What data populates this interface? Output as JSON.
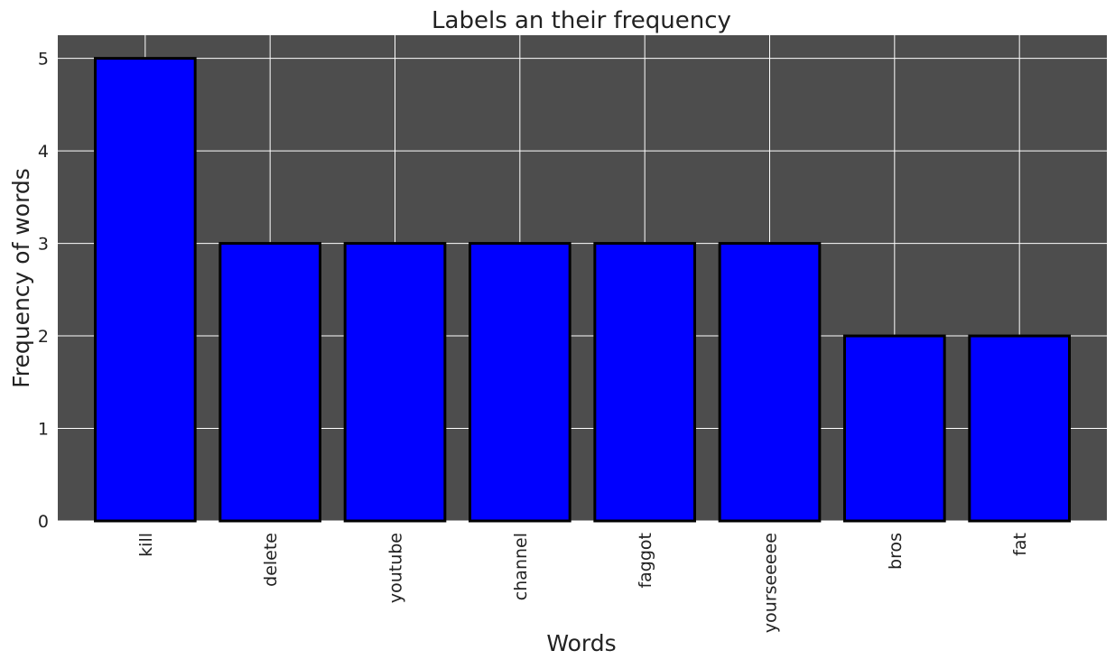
{
  "chart_data": {
    "type": "bar",
    "title": "Labels an their frequency",
    "xlabel": "Words",
    "ylabel": "Frequency of words",
    "categories": [
      "kill",
      "delete",
      "youtube",
      "channel",
      "faggot",
      "yourseeeee",
      "bros",
      "fat"
    ],
    "values": [
      5,
      3,
      3,
      3,
      3,
      3,
      2,
      2
    ],
    "ylim": [
      0,
      5.25
    ],
    "yticks": [
      0,
      1,
      2,
      3,
      4,
      5
    ],
    "xtick_rotation": "vertical",
    "grid": true,
    "legend": "none",
    "colors": {
      "plot_background": "#4d4d4d",
      "bar_fill": "#0000ff",
      "bar_edge": "#000000",
      "grid": "#ffffff",
      "text": "#222222"
    }
  }
}
